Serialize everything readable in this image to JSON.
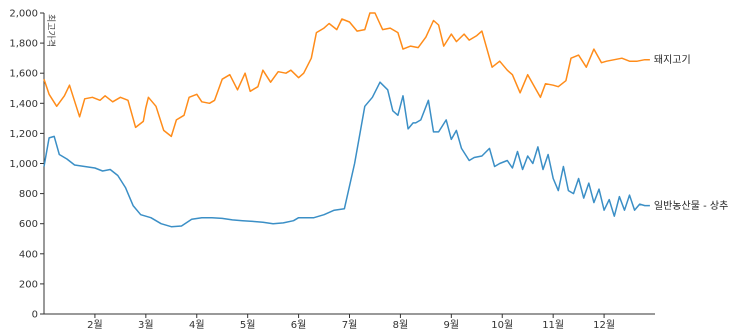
{
  "chart_data": {
    "type": "line",
    "ylabel": "최고가격",
    "ylim": [
      0,
      2000
    ],
    "y_ticks": [
      "0",
      "200",
      "400",
      "600",
      "800",
      "1,000",
      "1,200",
      "1,400",
      "1,600",
      "1,800",
      "2,000"
    ],
    "y_tick_values": [
      0,
      200,
      400,
      600,
      800,
      1000,
      1200,
      1400,
      1600,
      1800,
      2000
    ],
    "x_ticks": [
      "2월",
      "3월",
      "4월",
      "5월",
      "6월",
      "7월",
      "8월",
      "9월",
      "10월",
      "11월",
      "12월"
    ],
    "xlim": [
      1,
      13
    ],
    "grid": false,
    "legend": "inline-right",
    "series": [
      {
        "name": "돼지고기",
        "color": "#ff8c1a",
        "x": [
          1.0,
          1.1,
          1.25,
          1.4,
          1.5,
          1.7,
          1.8,
          1.95,
          2.1,
          2.2,
          2.35,
          2.5,
          2.65,
          2.8,
          2.95,
          3.0,
          3.05,
          3.2,
          3.35,
          3.5,
          3.6,
          3.75,
          3.85,
          4.0,
          4.1,
          4.25,
          4.35,
          4.5,
          4.65,
          4.8,
          4.95,
          5.05,
          5.2,
          5.3,
          5.45,
          5.6,
          5.75,
          5.85,
          6.0,
          6.1,
          6.25,
          6.35,
          6.5,
          6.6,
          6.75,
          6.85,
          7.0,
          7.15,
          7.3,
          7.4,
          7.5,
          7.65,
          7.8,
          7.95,
          8.05,
          8.2,
          8.35,
          8.5,
          8.65,
          8.75,
          8.85,
          9.0,
          9.1,
          9.25,
          9.35,
          9.5,
          9.6,
          9.8,
          9.95,
          10.1,
          10.2,
          10.35,
          10.5,
          10.65,
          10.75,
          10.85,
          11.0,
          11.1,
          11.25,
          11.35,
          11.5,
          11.65,
          11.8,
          11.95,
          12.05,
          12.2,
          12.35,
          12.5,
          12.65,
          12.8,
          12.9
        ],
        "values": [
          1560,
          1460,
          1380,
          1450,
          1520,
          1310,
          1430,
          1440,
          1420,
          1450,
          1410,
          1440,
          1420,
          1240,
          1280,
          1370,
          1440,
          1380,
          1220,
          1180,
          1290,
          1320,
          1440,
          1460,
          1410,
          1400,
          1420,
          1560,
          1590,
          1490,
          1600,
          1480,
          1510,
          1620,
          1540,
          1610,
          1600,
          1620,
          1570,
          1600,
          1700,
          1870,
          1900,
          1930,
          1890,
          1960,
          1940,
          1880,
          1890,
          2000,
          2000,
          1890,
          1900,
          1870,
          1760,
          1780,
          1770,
          1840,
          1950,
          1920,
          1780,
          1860,
          1810,
          1860,
          1820,
          1850,
          1880,
          1640,
          1680,
          1620,
          1590,
          1470,
          1590,
          1500,
          1440,
          1530,
          1520,
          1510,
          1550,
          1700,
          1720,
          1640,
          1760,
          1670,
          1680,
          1690,
          1700,
          1680,
          1680,
          1690,
          1690
        ]
      },
      {
        "name": "일반농산물 - 상추",
        "color": "#3b8fc6",
        "x": [
          1.0,
          1.1,
          1.2,
          1.3,
          1.45,
          1.6,
          1.8,
          2.0,
          2.15,
          2.3,
          2.45,
          2.6,
          2.75,
          2.9,
          3.1,
          3.3,
          3.5,
          3.7,
          3.9,
          4.1,
          4.3,
          4.5,
          4.7,
          4.9,
          5.1,
          5.3,
          5.5,
          5.7,
          5.9,
          6.0,
          6.1,
          6.3,
          6.5,
          6.7,
          6.9,
          7.1,
          7.3,
          7.45,
          7.6,
          7.75,
          7.85,
          7.95,
          8.05,
          8.15,
          8.25,
          8.3,
          8.4,
          8.55,
          8.65,
          8.75,
          8.9,
          9.0,
          9.1,
          9.2,
          9.35,
          9.45,
          9.6,
          9.75,
          9.85,
          9.95,
          10.1,
          10.2,
          10.3,
          10.4,
          10.5,
          10.6,
          10.7,
          10.8,
          10.9,
          11.0,
          11.1,
          11.2,
          11.3,
          11.4,
          11.5,
          11.6,
          11.7,
          11.8,
          11.9,
          12.0,
          12.1,
          12.2,
          12.3,
          12.4,
          12.5,
          12.6,
          12.7,
          12.8,
          12.9
        ],
        "values": [
          980,
          1170,
          1180,
          1060,
          1030,
          990,
          980,
          970,
          950,
          960,
          920,
          840,
          720,
          660,
          640,
          600,
          580,
          585,
          630,
          640,
          640,
          635,
          625,
          620,
          615,
          610,
          600,
          605,
          620,
          640,
          640,
          640,
          660,
          690,
          700,
          1000,
          1380,
          1440,
          1540,
          1490,
          1350,
          1320,
          1450,
          1230,
          1270,
          1270,
          1290,
          1420,
          1210,
          1210,
          1290,
          1160,
          1220,
          1100,
          1020,
          1040,
          1050,
          1100,
          980,
          1000,
          1020,
          970,
          1080,
          960,
          1050,
          1000,
          1110,
          960,
          1060,
          900,
          820,
          980,
          820,
          800,
          900,
          770,
          870,
          740,
          830,
          690,
          760,
          650,
          780,
          690,
          790,
          690,
          730,
          720,
          720
        ]
      }
    ]
  }
}
